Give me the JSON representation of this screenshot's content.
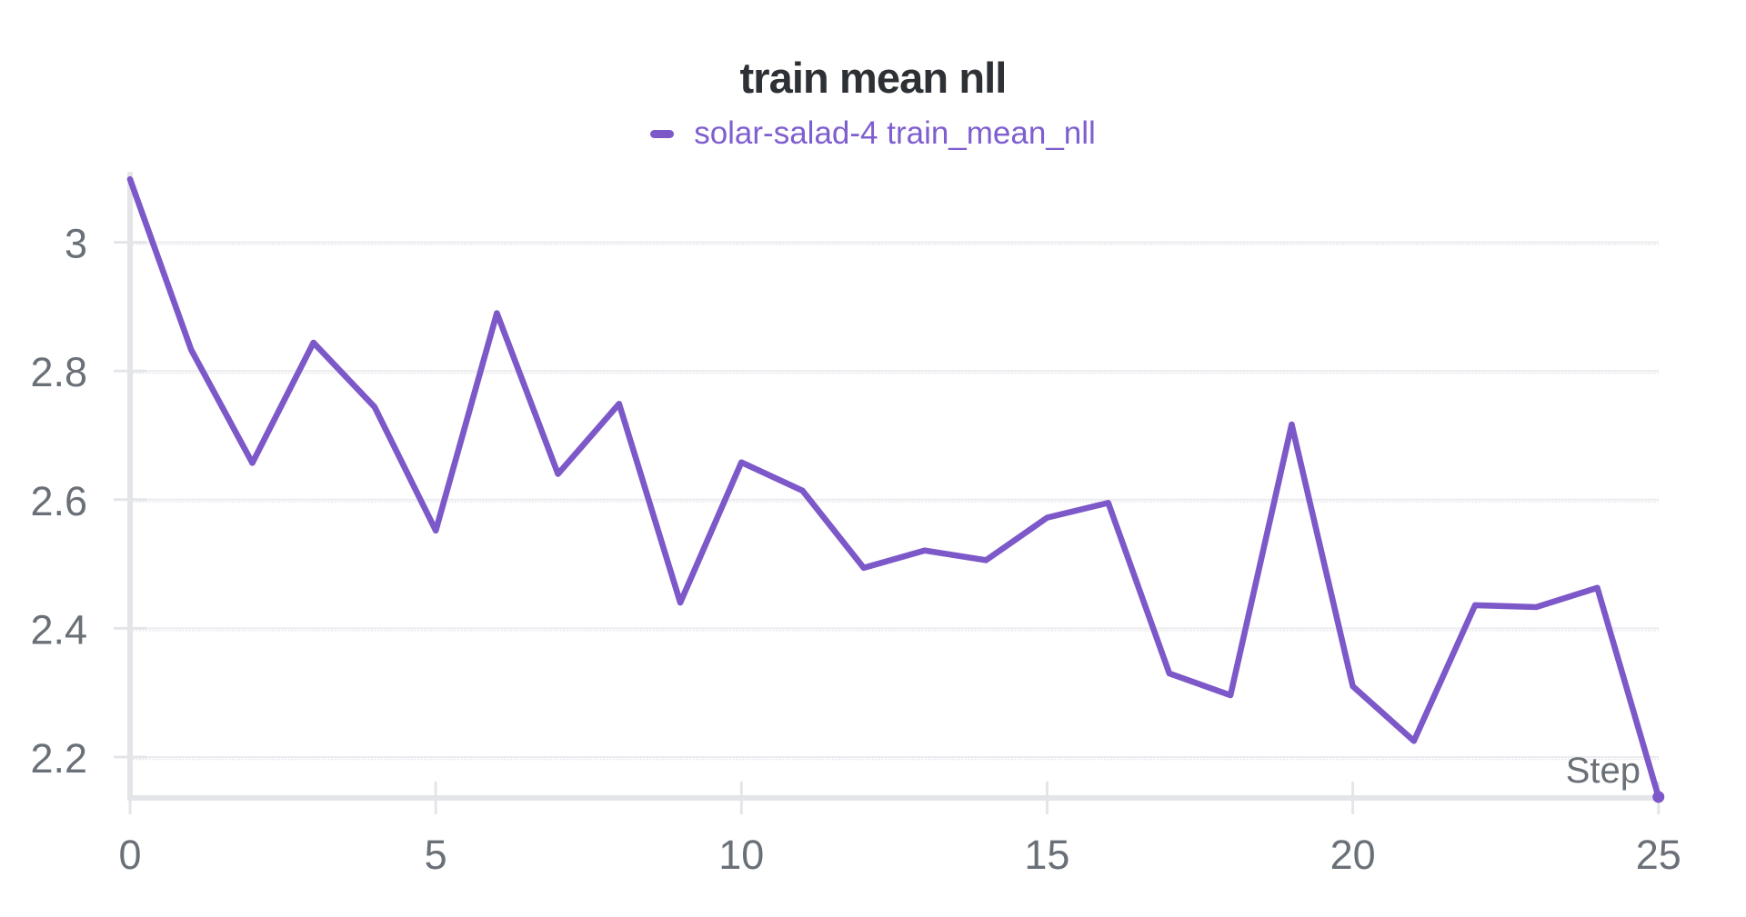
{
  "title": "train mean nll",
  "legend": {
    "label": "solar-salad-4 train_mean_nll"
  },
  "axes": {
    "x_label": "Step",
    "x_tick_labels": [
      "0",
      "5",
      "10",
      "15",
      "20",
      "25"
    ],
    "y_tick_labels": [
      "3",
      "2.8",
      "2.6",
      "2.4",
      "2.2"
    ]
  },
  "colors": {
    "series": "#7c58c9",
    "legend_text": "#7f5ecf",
    "title_text": "#2d3035",
    "tick_text": "#6a7077",
    "axis_line": "#e4e5e9",
    "grid_line": "#ececf0",
    "grid_dots": "#e6e6ec",
    "background": "#ffffff"
  },
  "chart_data": {
    "type": "line",
    "title": "train mean nll",
    "xlabel": "Step",
    "ylabel": "",
    "x_ticks": [
      0,
      5,
      10,
      15,
      20,
      25
    ],
    "y_ticks": [
      3.0,
      2.8,
      2.6,
      2.4,
      2.2
    ],
    "xlim": [
      0,
      25
    ],
    "ylim": [
      2.136,
      3.11
    ],
    "grid": true,
    "legend_position": "top-center",
    "series": [
      {
        "name": "solar-salad-4 train_mean_nll",
        "color": "#7c58c9",
        "end_marker": "dot",
        "x": [
          0,
          1,
          2,
          3,
          4,
          5,
          6,
          7,
          8,
          9,
          10,
          11,
          12,
          13,
          14,
          15,
          16,
          17,
          18,
          19,
          20,
          21,
          22,
          23,
          24,
          25
        ],
        "y": [
          3.098,
          2.833,
          2.657,
          2.844,
          2.744,
          2.552,
          2.89,
          2.64,
          2.749,
          2.44,
          2.658,
          2.614,
          2.494,
          2.521,
          2.506,
          2.572,
          2.595,
          2.33,
          2.296,
          2.717,
          2.31,
          2.225,
          2.436,
          2.433,
          2.463,
          2.138
        ]
      }
    ]
  }
}
